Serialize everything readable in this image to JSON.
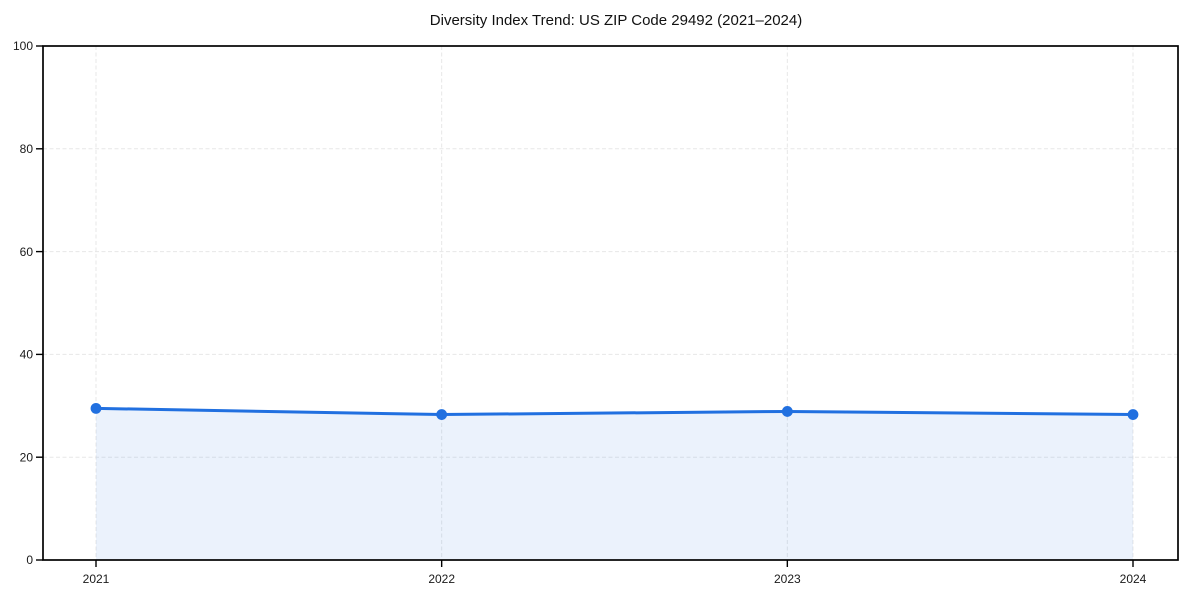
{
  "chart_data": {
    "type": "line",
    "title": "Diversity Index Trend: US ZIP Code 29492 (2021–2024)",
    "categories": [
      "2021",
      "2022",
      "2023",
      "2024"
    ],
    "series": [
      {
        "name": "Diversity Index",
        "values": [
          29.5,
          28.3,
          28.9,
          28.3
        ]
      }
    ],
    "xlabel": "",
    "ylabel": "",
    "ylim": [
      0,
      100
    ],
    "yticks": [
      0,
      20,
      40,
      60,
      80,
      100
    ],
    "grid": "on",
    "grid_style": "dashed",
    "legend_position": "none",
    "marker": "circle",
    "colors": {
      "line": "#2170e0",
      "marker": "#2170e0",
      "area_fill": "#2170e0",
      "area_fill_opacity": 0.09,
      "grid": "#e7e7e7",
      "frame": "#000000",
      "tick_text": "#1a1a1a",
      "background": "#ffffff"
    }
  }
}
